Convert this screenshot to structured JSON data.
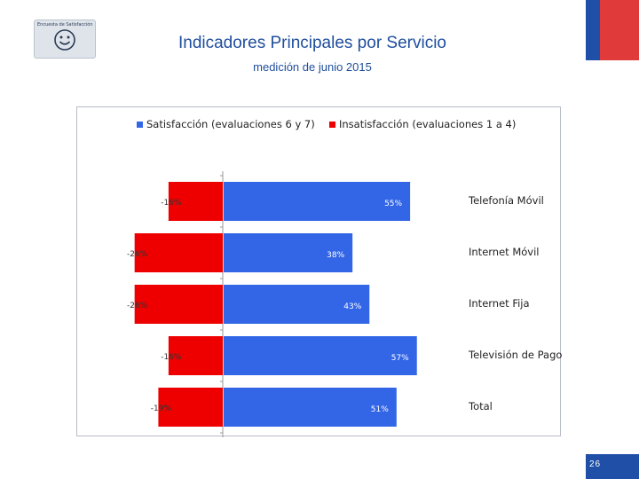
{
  "logo": {
    "text": "Encuesta de Satisfacción",
    "icon": "smiley-face-icon"
  },
  "header": {
    "title": "Indicadores Principales por Servicio",
    "subtitle": "medición de junio 2015"
  },
  "colors": {
    "satisfaction": "#3366e6",
    "dissatisfaction": "#ee0000",
    "accent_blue": "#1f4fa6",
    "accent_red": "#e13a3a",
    "title": "#1f4e9c"
  },
  "chart_data": {
    "type": "bar",
    "orientation": "horizontal",
    "layout": "diverging",
    "categories": [
      "Telefonía Móvil",
      "Internet Móvil",
      "Internet Fija",
      "Televisión de Pago",
      "Total"
    ],
    "series": [
      {
        "name": "Satisfacción (evaluaciones 6 y 7)",
        "values": [
          55,
          38,
          43,
          57,
          51
        ],
        "labels": [
          "55%",
          "38%",
          "43%",
          "57%",
          "51%"
        ]
      },
      {
        "name": "Insatisfacción (evaluaciones 1 a 4)",
        "values": [
          -16,
          -26,
          -26,
          -16,
          -19
        ],
        "labels": [
          "-16%",
          "-26%",
          "-26%",
          "-16%",
          "-19%"
        ]
      }
    ],
    "xlim": [
      -30,
      60
    ],
    "legend": "top"
  },
  "footer": {
    "page_number": "26"
  }
}
